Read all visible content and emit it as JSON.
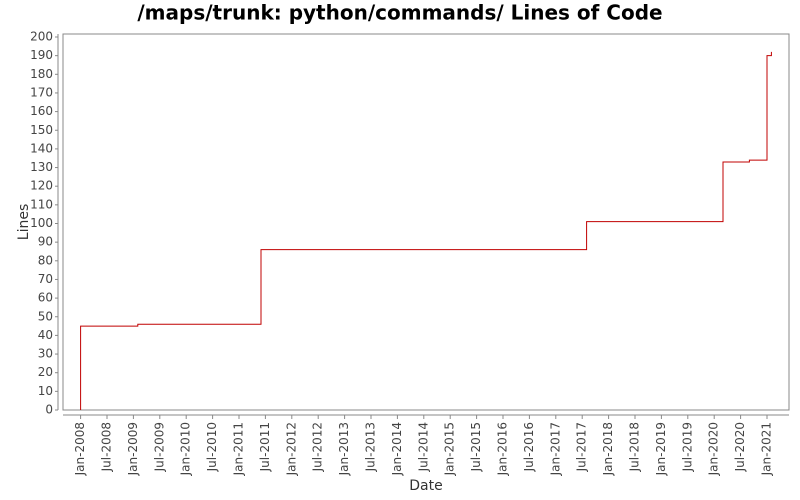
{
  "chart_data": {
    "type": "step-line",
    "title": "/maps/trunk: python/commands/ Lines of Code",
    "x_label": "Date",
    "y_label": "Lines",
    "series": [
      {
        "name": "Lines",
        "color": "#c00000",
        "x": [
          "2008-01",
          "2008-01",
          "2009-02",
          "2011-06",
          "2017-08",
          "2020-03",
          "2020-09",
          "2021-01",
          "2021-02"
        ],
        "values": [
          0,
          45,
          46,
          86,
          101,
          133,
          134,
          190,
          192
        ]
      }
    ],
    "xlim": [
      "2007-09",
      "2021-06"
    ],
    "xticks": [
      {
        "value": "2008-01",
        "label": "Jan-2008"
      },
      {
        "value": "2008-07",
        "label": "Jul-2008"
      },
      {
        "value": "2009-01",
        "label": "Jan-2009"
      },
      {
        "value": "2009-07",
        "label": "Jul-2009"
      },
      {
        "value": "2010-01",
        "label": "Jan-2010"
      },
      {
        "value": "2010-07",
        "label": "Jul-2010"
      },
      {
        "value": "2011-01",
        "label": "Jan-2011"
      },
      {
        "value": "2011-07",
        "label": "Jul-2011"
      },
      {
        "value": "2012-01",
        "label": "Jan-2012"
      },
      {
        "value": "2012-07",
        "label": "Jul-2012"
      },
      {
        "value": "2013-01",
        "label": "Jan-2013"
      },
      {
        "value": "2013-07",
        "label": "Jul-2013"
      },
      {
        "value": "2014-01",
        "label": "Jan-2014"
      },
      {
        "value": "2014-07",
        "label": "Jul-2014"
      },
      {
        "value": "2015-01",
        "label": "Jan-2015"
      },
      {
        "value": "2015-07",
        "label": "Jul-2015"
      },
      {
        "value": "2016-01",
        "label": "Jan-2016"
      },
      {
        "value": "2016-07",
        "label": "Jul-2016"
      },
      {
        "value": "2017-01",
        "label": "Jan-2017"
      },
      {
        "value": "2017-07",
        "label": "Jul-2017"
      },
      {
        "value": "2018-01",
        "label": "Jan-2018"
      },
      {
        "value": "2018-07",
        "label": "Jul-2018"
      },
      {
        "value": "2019-01",
        "label": "Jan-2019"
      },
      {
        "value": "2019-07",
        "label": "Jul-2019"
      },
      {
        "value": "2020-01",
        "label": "Jan-2020"
      },
      {
        "value": "2020-07",
        "label": "Jul-2020"
      },
      {
        "value": "2021-01",
        "label": "Jan-2021"
      }
    ],
    "ylim": [
      0,
      200
    ],
    "yticks": [
      0,
      10,
      20,
      30,
      40,
      50,
      60,
      70,
      80,
      90,
      100,
      110,
      120,
      130,
      140,
      150,
      160,
      170,
      180,
      190,
      200
    ],
    "grid": false
  }
}
